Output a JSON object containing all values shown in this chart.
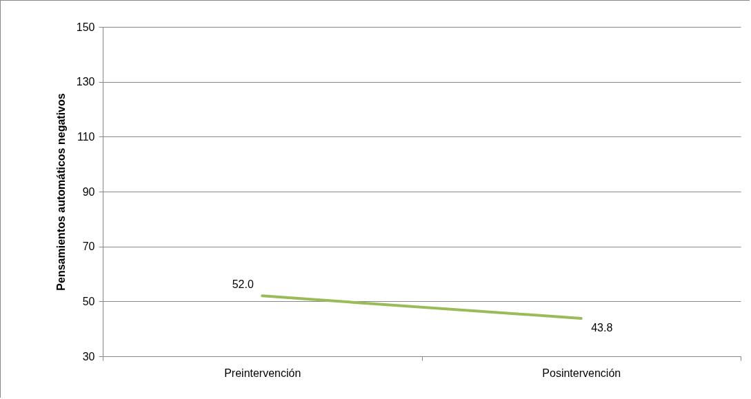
{
  "chart_data": {
    "type": "line",
    "ylabel": "Pensamientos automáticos negativos",
    "categories": [
      "Preintervención",
      "Posintervención"
    ],
    "series": [
      {
        "color": "#9bbb59",
        "values": [
          52.0,
          43.8
        ],
        "value_labels": [
          "52.0",
          "43.8"
        ]
      }
    ],
    "ylim": [
      30,
      150
    ],
    "yticks": [
      30,
      50,
      70,
      90,
      110,
      130,
      150
    ],
    "grid": "y",
    "marker": "none",
    "line_style": "solid"
  }
}
